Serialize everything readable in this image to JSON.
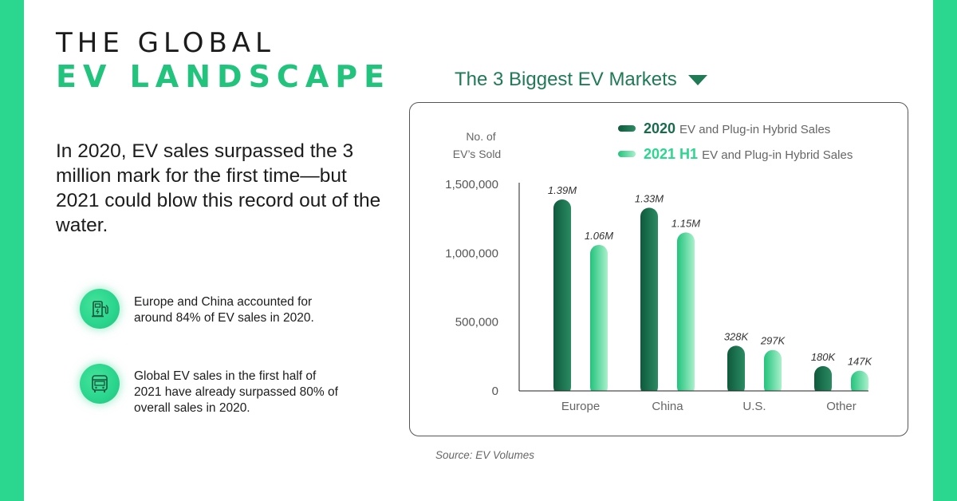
{
  "header": {
    "title_line1": "THE GLOBAL",
    "title_line2": "EV LANDSCAPE"
  },
  "lead_text": "In 2020, EV sales surpassed the 3 million mark for the first time—but 2021 could blow this record out of the water.",
  "facts": [
    {
      "icon": "ev-charger-icon",
      "text": "Europe and China accounted for around 84% of EV sales in 2020."
    },
    {
      "icon": "bus-icon",
      "text": "Global EV sales in the first half of 2021 have already surpassed 80% of overall sales in 2020."
    }
  ],
  "chart_heading": "The 3 Biggest EV Markets",
  "source": "Source: EV Volumes",
  "colors": {
    "stripe": "#2bd68e",
    "accent": "#22c37c",
    "series_2020": "#1a6b4c",
    "series_2021": "#2bd68e"
  },
  "chart_data": {
    "type": "bar",
    "ylabel_line1": "No. of",
    "ylabel_line2": "EV’s Sold",
    "categories": [
      "Europe",
      "China",
      "U.S.",
      "Other"
    ],
    "ylim": [
      0,
      1500000
    ],
    "yticks": [
      0,
      500000,
      1000000,
      1500000
    ],
    "ytick_labels": [
      "0",
      "500,000",
      "1,000,000",
      "1,500,000"
    ],
    "grid": false,
    "legend_position": "top",
    "series": [
      {
        "name": "2020",
        "legend_suffix": "EV and Plug-in Hybrid Sales",
        "color": "#1a6b4c",
        "values": [
          1390000,
          1330000,
          328000,
          180000
        ],
        "labels": [
          "1.39M",
          "1.33M",
          "328K",
          "180K"
        ]
      },
      {
        "name": "2021 H1",
        "legend_suffix": "EV and Plug-in Hybrid Sales",
        "color": "#2bd68e",
        "values": [
          1060000,
          1150000,
          297000,
          147000
        ],
        "labels": [
          "1.06M",
          "1.15M",
          "297K",
          "147K"
        ]
      }
    ]
  }
}
